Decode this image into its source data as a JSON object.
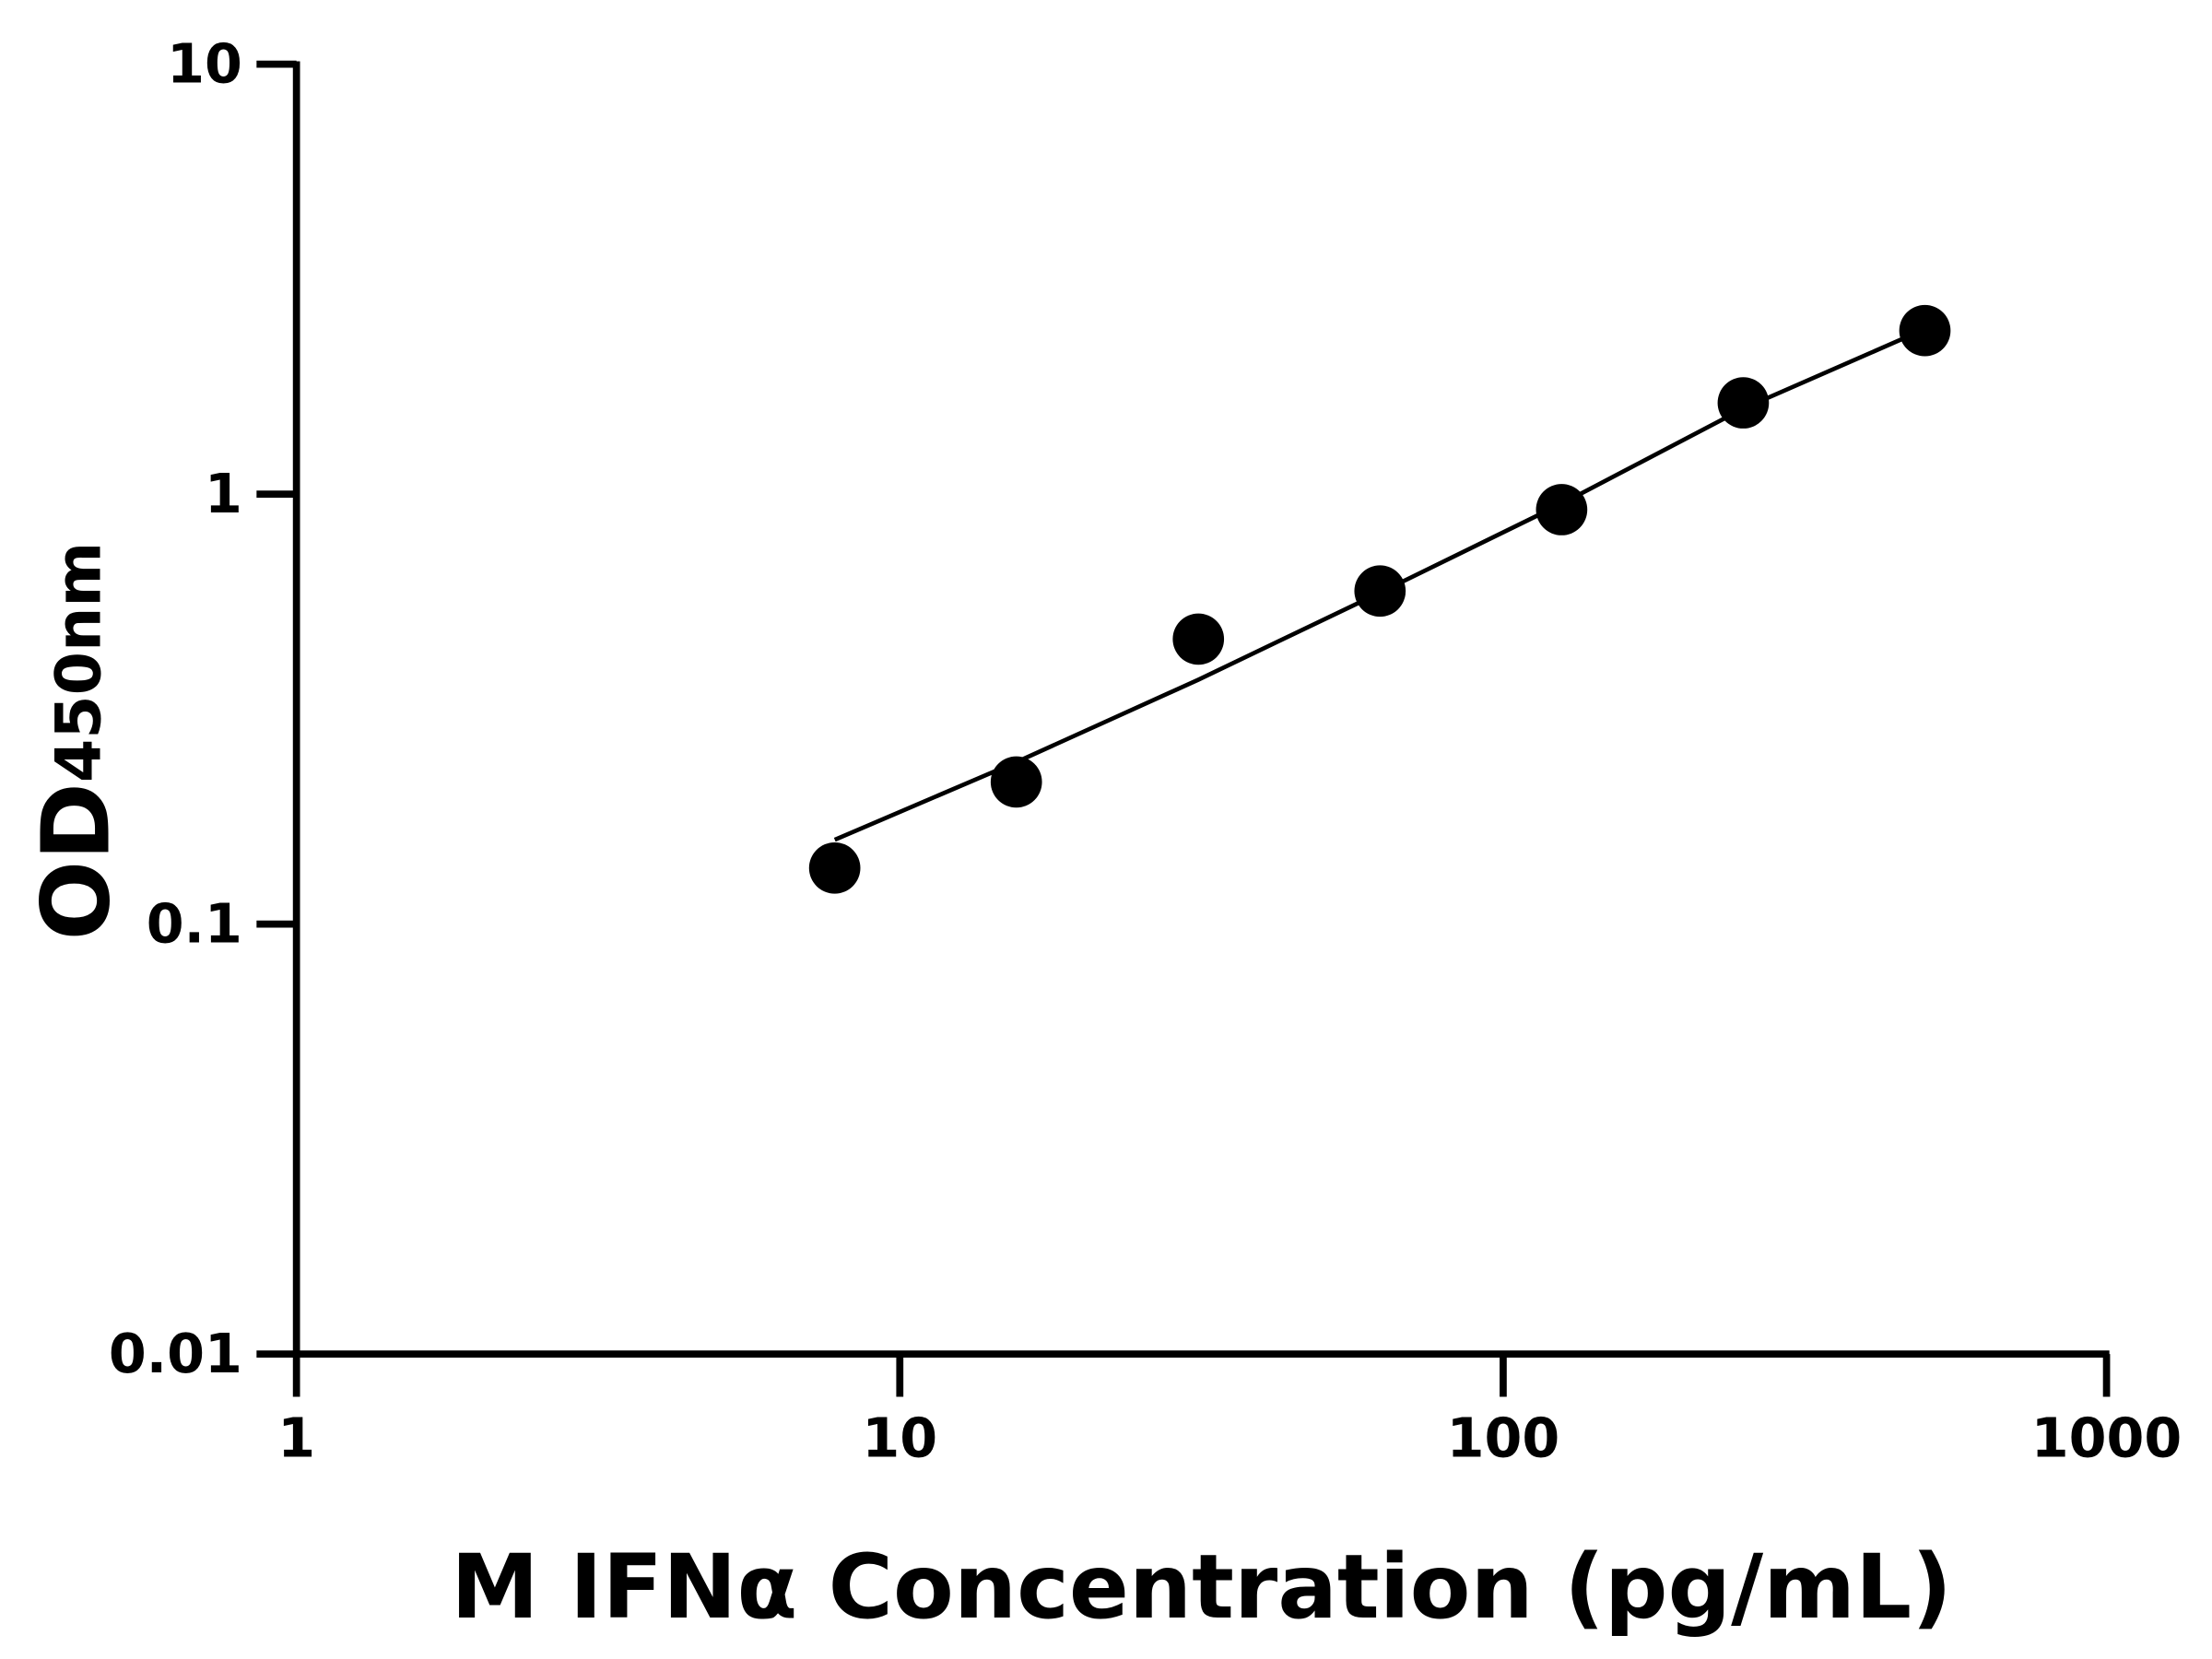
{
  "chart_data": {
    "type": "scatter",
    "title": "",
    "xlabel": "M IFNα Concentration (pg/mL)",
    "ylabel_main": "OD",
    "ylabel_sub": "450nm",
    "x_scale": "log",
    "y_scale": "log",
    "xlim": [
      1,
      1000
    ],
    "ylim": [
      0.01,
      10
    ],
    "x_ticks": [
      "1",
      "10",
      "100",
      "1000"
    ],
    "y_ticks": [
      "0.01",
      "0.1",
      "1",
      "10"
    ],
    "grid": false,
    "color": "#000000",
    "points": [
      {
        "x": 7.8,
        "y": 0.135
      },
      {
        "x": 15.6,
        "y": 0.214
      },
      {
        "x": 31.25,
        "y": 0.46
      },
      {
        "x": 62.5,
        "y": 0.595
      },
      {
        "x": 125,
        "y": 0.92
      },
      {
        "x": 250,
        "y": 1.63
      },
      {
        "x": 500,
        "y": 2.4
      }
    ],
    "fit_curve": [
      {
        "x": 7.8,
        "y": 0.157
      },
      {
        "x": 15.6,
        "y": 0.238
      },
      {
        "x": 31.25,
        "y": 0.37
      },
      {
        "x": 62.5,
        "y": 0.59
      },
      {
        "x": 125,
        "y": 0.95
      },
      {
        "x": 250,
        "y": 1.58
      },
      {
        "x": 500,
        "y": 2.42
      }
    ]
  }
}
